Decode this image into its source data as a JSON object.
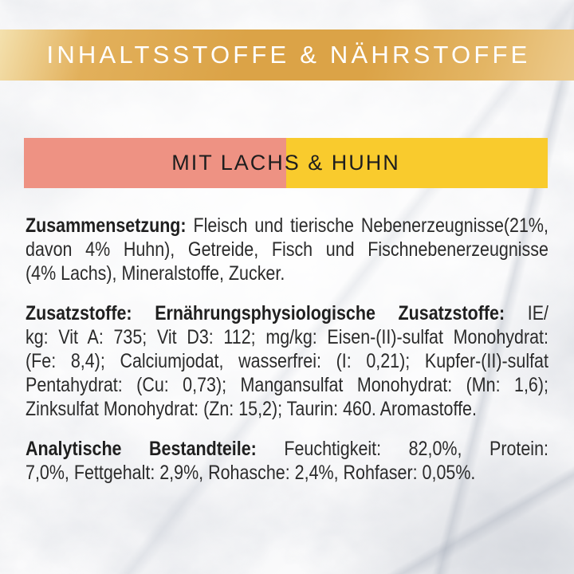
{
  "header": {
    "title": "INHALTSSTOFFE & NÄHRSTOFFE",
    "text_color": "#ffffff",
    "gold_light": "#f4e1ae",
    "gold_mid": "#e2b05b",
    "gold_deep": "#dba347",
    "gold_mid2": "#e3b564",
    "gold_sheen": "#edcb8d"
  },
  "flavor": {
    "title": "MIT LACHS & HUHN",
    "salmon_color": "#ee9283",
    "chicken_color": "#f9cb2d",
    "text_color": "#1e1e1e"
  },
  "body": {
    "text_color": "#2b2b2b",
    "bold_text_color": "#1f1f1f"
  },
  "sections": [
    {
      "name": "zusammensetzung",
      "lines": [
        {
          "justify": true,
          "segments": [
            {
              "text": "Zusammensetzung:",
              "bold": true
            },
            {
              "text": " Fleisch und tierische Nebenerzeugnisse(21%,",
              "bold": false
            }
          ]
        },
        {
          "justify": true,
          "segments": [
            {
              "text": "davon 4% Huhn), Getreide, Fisch und Fischnebenerzeugnisse",
              "bold": false
            }
          ]
        },
        {
          "justify": false,
          "segments": [
            {
              "text": "(4% Lachs), Mineralstoffe, Zucker.",
              "bold": false
            }
          ]
        }
      ]
    },
    {
      "name": "zusatzstoffe",
      "lines": [
        {
          "justify": true,
          "segments": [
            {
              "text": "Zusatzstoffe: Ernährungsphysiologische Zusatzstoffe:",
              "bold": true
            },
            {
              "text": " IE/",
              "bold": false
            }
          ]
        },
        {
          "justify": true,
          "segments": [
            {
              "text": "kg: Vit A: 735; Vit D3: 112; mg/kg: Eisen-(II)-sulfat Monohydrat:",
              "bold": false
            }
          ]
        },
        {
          "justify": true,
          "segments": [
            {
              "text": "(Fe: 8,4); Calciumjodat, wasserfrei: (I: 0,21); Kupfer-(II)-sulfat",
              "bold": false
            }
          ]
        },
        {
          "justify": true,
          "segments": [
            {
              "text": "Pentahydrat: (Cu: 0,73); Mangansulfat Monohydrat: (Mn: 1,6);",
              "bold": false
            }
          ]
        },
        {
          "justify": false,
          "segments": [
            {
              "text": "Zinksulfat Monohydrat: (Zn: 15,2); Taurin: 460. Aromastoffe.",
              "bold": false
            }
          ]
        }
      ]
    },
    {
      "name": "analytische-bestandteile",
      "lines": [
        {
          "justify": true,
          "segments": [
            {
              "text": "Analytische Bestandteile:",
              "bold": true
            },
            {
              "text": " Feuchtigkeit: 82,0%, Protein:",
              "bold": false
            }
          ]
        },
        {
          "justify": false,
          "segments": [
            {
              "text": "7,0%, Fettgehalt: 2,9%, Rohasche: 2,4%, Rohfaser: 0,05%.",
              "bold": false
            }
          ]
        }
      ]
    }
  ]
}
